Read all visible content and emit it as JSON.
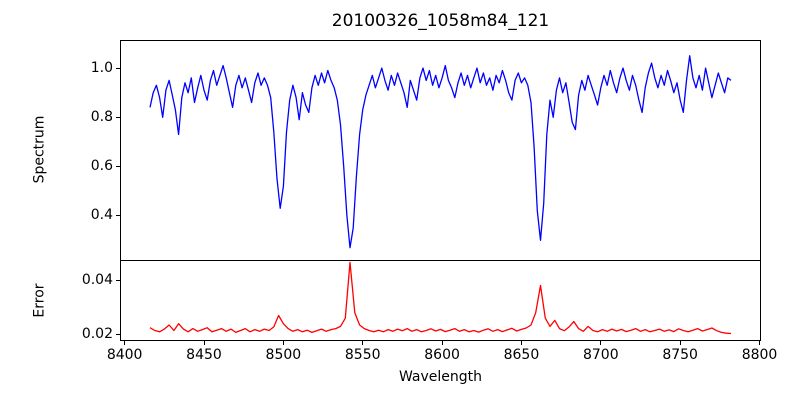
{
  "figure": {
    "title": "20100326_1058m84_121",
    "xlabel": "Wavelength",
    "background_color": "#ffffff",
    "axes_color": "#000000"
  },
  "chart_data": [
    {
      "type": "line",
      "name": "spectrum",
      "ylabel": "Spectrum",
      "color": "#0000ff",
      "line_width": 1.3,
      "grid": false,
      "legend": "none",
      "xlim": [
        8397.7,
        8800.3
      ],
      "ylim": [
        0.22,
        1.11
      ],
      "yticks": [
        0.4,
        0.6,
        0.8,
        1.0
      ],
      "yticklabels": [
        "0.4",
        "0.6",
        "0.8",
        "1.0"
      ],
      "x_start": 8416,
      "x_step": 2,
      "y": [
        0.84,
        0.9,
        0.93,
        0.88,
        0.8,
        0.91,
        0.95,
        0.89,
        0.83,
        0.73,
        0.88,
        0.94,
        0.9,
        0.96,
        0.86,
        0.92,
        0.97,
        0.91,
        0.87,
        0.95,
        0.99,
        0.93,
        0.97,
        1.01,
        0.96,
        0.9,
        0.84,
        0.93,
        0.97,
        0.92,
        0.96,
        0.91,
        0.86,
        0.94,
        0.98,
        0.93,
        0.96,
        0.93,
        0.88,
        0.74,
        0.55,
        0.43,
        0.52,
        0.74,
        0.87,
        0.93,
        0.88,
        0.79,
        0.9,
        0.85,
        0.82,
        0.92,
        0.97,
        0.93,
        0.98,
        0.94,
        0.99,
        0.95,
        0.92,
        0.87,
        0.77,
        0.6,
        0.4,
        0.27,
        0.35,
        0.56,
        0.73,
        0.83,
        0.89,
        0.93,
        0.97,
        0.92,
        0.96,
        1.0,
        0.95,
        0.91,
        0.97,
        0.93,
        0.98,
        0.94,
        0.9,
        0.84,
        0.95,
        0.91,
        0.87,
        0.96,
        1.0,
        0.95,
        0.99,
        0.93,
        0.97,
        0.92,
        0.96,
        1.01,
        0.95,
        0.92,
        0.88,
        0.94,
        0.98,
        0.93,
        0.97,
        0.92,
        0.96,
        1.0,
        0.94,
        0.98,
        0.93,
        0.96,
        0.91,
        0.97,
        0.94,
        0.99,
        0.95,
        0.9,
        0.87,
        0.95,
        0.98,
        0.94,
        0.96,
        0.93,
        0.86,
        0.68,
        0.42,
        0.3,
        0.45,
        0.73,
        0.87,
        0.8,
        0.91,
        0.96,
        0.9,
        0.94,
        0.86,
        0.78,
        0.75,
        0.89,
        0.95,
        0.91,
        0.97,
        0.93,
        0.89,
        0.85,
        0.92,
        0.97,
        0.93,
        0.99,
        0.94,
        0.9,
        0.96,
        1.0,
        0.95,
        0.91,
        0.97,
        0.93,
        0.87,
        0.82,
        0.92,
        0.98,
        1.02,
        0.96,
        0.92,
        0.97,
        0.93,
        0.99,
        0.95,
        0.9,
        0.94,
        0.87,
        0.82,
        0.95,
        1.05,
        0.96,
        0.92,
        0.97,
        0.91,
        1.0,
        0.94,
        0.88,
        0.93,
        0.98,
        0.94,
        0.9,
        0.96,
        0.95
      ],
      "absorption_line_centers": [
        8498,
        8542,
        8662
      ]
    },
    {
      "type": "line",
      "name": "error",
      "ylabel": "Error",
      "color": "#ff0000",
      "line_width": 1.3,
      "grid": false,
      "legend": "none",
      "xlim": [
        8397.7,
        8800.3
      ],
      "ylim": [
        0.018,
        0.047
      ],
      "yticks": [
        0.02,
        0.04
      ],
      "yticklabels": [
        "0.02",
        "0.04"
      ],
      "xticks": [
        8400,
        8450,
        8500,
        8550,
        8600,
        8650,
        8700,
        8750,
        8800
      ],
      "xticklabels": [
        "8400",
        "8450",
        "8500",
        "8550",
        "8600",
        "8650",
        "8700",
        "8750",
        "8800"
      ],
      "x_start": 8416,
      "x_step": 3,
      "y": [
        0.0225,
        0.0215,
        0.021,
        0.022,
        0.0235,
        0.0215,
        0.024,
        0.022,
        0.021,
        0.0222,
        0.0212,
        0.0218,
        0.0225,
        0.021,
        0.0216,
        0.0222,
        0.0212,
        0.022,
        0.0208,
        0.0215,
        0.0222,
        0.021,
        0.0218,
        0.0212,
        0.022,
        0.0215,
        0.0228,
        0.027,
        0.024,
        0.0222,
        0.0212,
        0.0218,
        0.021,
        0.0216,
        0.0208,
        0.0214,
        0.022,
        0.0212,
        0.0218,
        0.0222,
        0.023,
        0.026,
        0.0465,
        0.028,
        0.0235,
        0.0222,
        0.0215,
        0.021,
        0.0216,
        0.021,
        0.0218,
        0.0212,
        0.022,
        0.0214,
        0.0222,
        0.0212,
        0.0218,
        0.021,
        0.0215,
        0.0221,
        0.0213,
        0.0219,
        0.0211,
        0.0216,
        0.0222,
        0.0212,
        0.0218,
        0.021,
        0.0215,
        0.0209,
        0.0216,
        0.0221,
        0.0212,
        0.0218,
        0.0211,
        0.0217,
        0.0223,
        0.0213,
        0.0219,
        0.0224,
        0.0235,
        0.028,
        0.038,
        0.026,
        0.023,
        0.0252,
        0.0222,
        0.0214,
        0.0228,
        0.0248,
        0.0222,
        0.0212,
        0.023,
        0.0215,
        0.021,
        0.0218,
        0.0212,
        0.022,
        0.0213,
        0.0219,
        0.0211,
        0.0216,
        0.0222,
        0.0212,
        0.0218,
        0.021,
        0.0215,
        0.022,
        0.0212,
        0.0217,
        0.0211,
        0.0221,
        0.0215,
        0.021,
        0.0216,
        0.0222,
        0.0213,
        0.0218,
        0.0224,
        0.0214,
        0.0208,
        0.0205,
        0.0204
      ]
    }
  ]
}
